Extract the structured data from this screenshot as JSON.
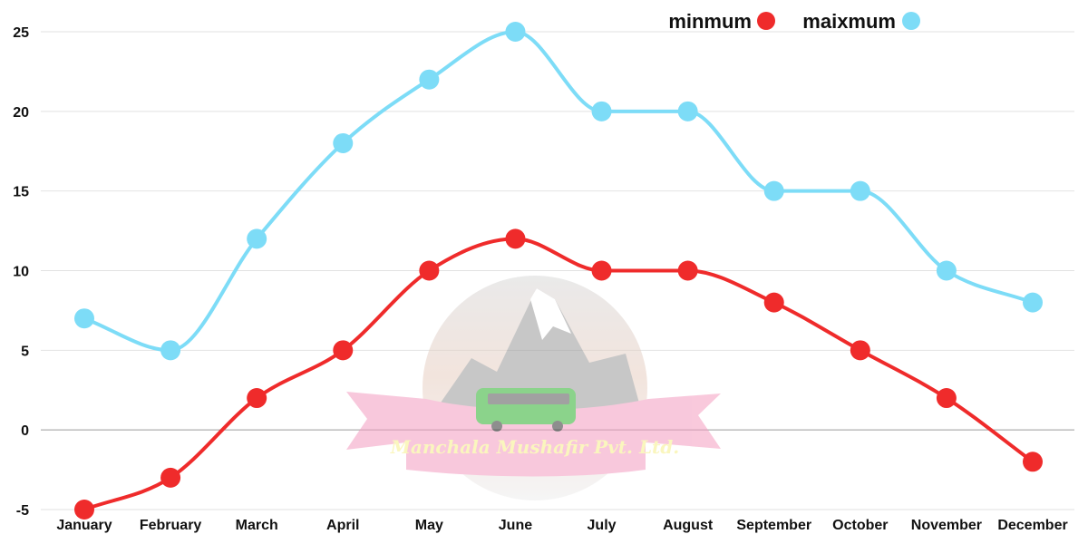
{
  "chart_data": {
    "type": "line",
    "categories": [
      "January",
      "February",
      "March",
      "April",
      "May",
      "June",
      "July",
      "August",
      "September",
      "October",
      "November",
      "December"
    ],
    "series": [
      {
        "name": "minmum",
        "color": "#ef2b2b",
        "values": [
          -5,
          -3,
          2,
          5,
          10,
          12,
          10,
          10,
          8,
          5,
          2,
          -2
        ]
      },
      {
        "name": "maixmum",
        "color": "#7ddcf7",
        "values": [
          7,
          5,
          12,
          18,
          22,
          25,
          20,
          20,
          15,
          15,
          10,
          8
        ]
      }
    ],
    "yticks": [
      -5,
      0,
      5,
      10,
      15,
      20,
      25
    ],
    "ylim": [
      -5,
      25
    ],
    "grid": true,
    "smooth": true,
    "legend_position": "top-right"
  },
  "watermark": {
    "text": "Manchala Mushafir Pvt. Ltd.",
    "icon": "mountain-bus-logo"
  }
}
